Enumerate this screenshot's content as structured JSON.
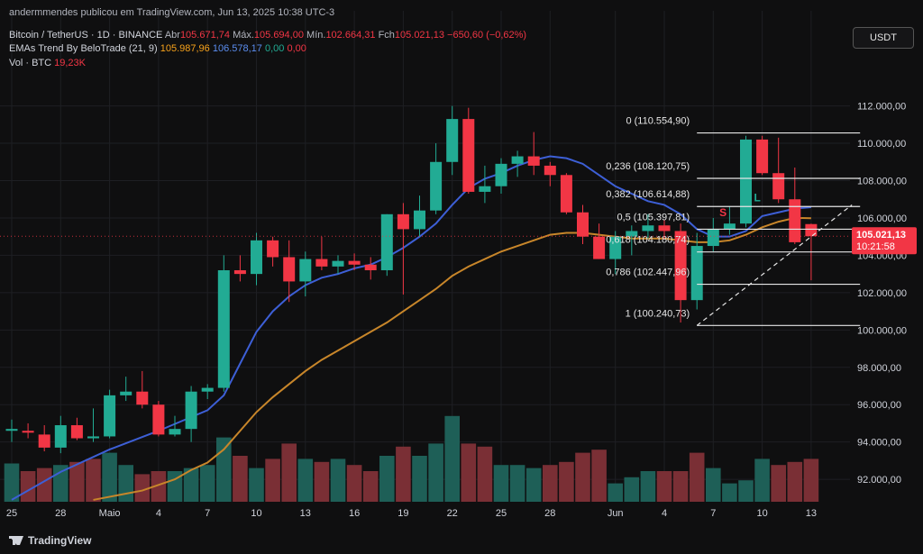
{
  "header": {
    "published": "andermmendes publicou em TradingView.com, Jun 13, 2025 10:38 UTC-3",
    "symbol": "Bitcoin / TetherUS · 1D · BINANCE",
    "ohlc": {
      "o_label": "Abr",
      "o_value": "105.671,74",
      "h_label": "Máx.",
      "h_value": "105.694,00",
      "l_label": "Mín.",
      "l_value": "102.664,31",
      "c_label": "Fch",
      "c_value": "105.021,13",
      "change": "−650,60 (−0,62%)"
    },
    "ema_legend": {
      "name": "EMAs Trend By BeloTrade (21, 9)",
      "v1": "105.987,96",
      "v2": "106.578,17",
      "v3": "0,00",
      "v4": "0,00"
    },
    "vol_legend": {
      "name": "Vol · BTC",
      "value": "19,23K"
    },
    "currency": "USDT"
  },
  "footer": {
    "brand": "TradingView"
  },
  "colors": {
    "up": "#22ab94",
    "down": "#f23645",
    "ema_fast": "#3d5fd6",
    "ema_slow": "#c8862a",
    "vol_up": "#1e5f57",
    "vol_down": "#7a2f35",
    "bg": "#0f0f10",
    "grid": "#1e1f23"
  },
  "chart_data": {
    "type": "candlestick",
    "y_range": [
      90800,
      114200
    ],
    "x_range_days": [
      -0.4,
      45.4
    ],
    "y_ticks": [
      {
        "v": 92000,
        "label": "92.000,00"
      },
      {
        "v": 94000,
        "label": "94.000,00"
      },
      {
        "v": 96000,
        "label": "96.000,00"
      },
      {
        "v": 98000,
        "label": "98.000,00"
      },
      {
        "v": 100000,
        "label": "100.000,00"
      },
      {
        "v": 102000,
        "label": "102.000,00"
      },
      {
        "v": 104000,
        "label": "104.000,00"
      },
      {
        "v": 106000,
        "label": "106.000,00"
      },
      {
        "v": 108000,
        "label": "108.000,00"
      },
      {
        "v": 110000,
        "label": "110.000,00"
      },
      {
        "v": 112000,
        "label": "112.000,00"
      }
    ],
    "x_ticks": [
      {
        "d": 0,
        "label": "25"
      },
      {
        "d": 3,
        "label": "28"
      },
      {
        "d": 6,
        "label": "Maio"
      },
      {
        "d": 9,
        "label": "4"
      },
      {
        "d": 12,
        "label": "7"
      },
      {
        "d": 15,
        "label": "10"
      },
      {
        "d": 18,
        "label": "13"
      },
      {
        "d": 21,
        "label": "16"
      },
      {
        "d": 24,
        "label": "19"
      },
      {
        "d": 27,
        "label": "22"
      },
      {
        "d": 30,
        "label": "25"
      },
      {
        "d": 33,
        "label": "28"
      },
      {
        "d": 37,
        "label": "Jun"
      },
      {
        "d": 40,
        "label": "4"
      },
      {
        "d": 43,
        "label": "7"
      },
      {
        "d": 46,
        "label": "10"
      },
      {
        "d": 49,
        "label": "13"
      }
    ],
    "candles": [
      [
        94600,
        95200,
        94000,
        94700
      ],
      [
        94600,
        95000,
        94200,
        94500
      ],
      [
        94400,
        94900,
        93500,
        93700
      ],
      [
        93700,
        95400,
        93400,
        94900
      ],
      [
        94900,
        95300,
        94100,
        94200
      ],
      [
        94200,
        95800,
        94000,
        94300
      ],
      [
        94300,
        96800,
        94200,
        96500
      ],
      [
        96500,
        97500,
        96200,
        96700
      ],
      [
        96700,
        97800,
        95800,
        96000
      ],
      [
        96000,
        96200,
        94300,
        94400
      ],
      [
        94400,
        95400,
        94300,
        94700
      ],
      [
        94700,
        97000,
        94000,
        96700
      ],
      [
        96700,
        97100,
        96300,
        96900
      ],
      [
        96900,
        104000,
        96700,
        103200
      ],
      [
        103200,
        104000,
        102600,
        103000
      ],
      [
        103000,
        105200,
        102400,
        104800
      ],
      [
        104800,
        105000,
        103400,
        103900
      ],
      [
        103900,
        104800,
        101500,
        102600
      ],
      [
        102600,
        104200,
        101800,
        103800
      ],
      [
        103800,
        105000,
        103200,
        103400
      ],
      [
        103400,
        104000,
        103000,
        103700
      ],
      [
        103700,
        104100,
        103200,
        103500
      ],
      [
        103500,
        103900,
        102700,
        103200
      ],
      [
        103200,
        106200,
        102900,
        106200
      ],
      [
        106200,
        106800,
        101900,
        105400
      ],
      [
        105400,
        107200,
        105000,
        106400
      ],
      [
        106400,
        110000,
        106200,
        109000
      ],
      [
        109000,
        112000,
        108300,
        111300
      ],
      [
        111300,
        111900,
        107300,
        107400
      ],
      [
        107400,
        108800,
        106800,
        107700
      ],
      [
        107700,
        109200,
        107300,
        108900
      ],
      [
        108900,
        109600,
        108200,
        109300
      ],
      [
        109300,
        110600,
        108300,
        108800
      ],
      [
        108800,
        109000,
        107700,
        108300
      ],
      [
        108300,
        108400,
        106200,
        106300
      ],
      [
        106300,
        106700,
        104600,
        105000
      ],
      [
        105000,
        105700,
        103800,
        103800
      ],
      [
        103800,
        105300,
        103000,
        105000
      ],
      [
        105000,
        105600,
        104000,
        105300
      ],
      [
        105300,
        106200,
        104900,
        105600
      ],
      [
        105600,
        105900,
        104900,
        105300
      ],
      [
        105300,
        105700,
        100400,
        101600
      ],
      [
        101600,
        105200,
        101100,
        104500
      ],
      [
        104500,
        106000,
        104200,
        105400
      ],
      [
        105400,
        106600,
        105100,
        105700
      ],
      [
        105700,
        110400,
        105500,
        110200
      ],
      [
        110200,
        110400,
        108300,
        108400
      ],
      [
        108400,
        110300,
        106800,
        107000
      ],
      [
        107000,
        108700,
        104600,
        104700
      ],
      [
        105672,
        105694,
        102664,
        105021
      ]
    ],
    "volumes": [
      [
        0,
        0.25,
        "up"
      ],
      [
        1,
        0.2,
        "dn"
      ],
      [
        2,
        0.22,
        "dn"
      ],
      [
        3,
        0.24,
        "up"
      ],
      [
        4,
        0.26,
        "dn"
      ],
      [
        5,
        0.28,
        "dn"
      ],
      [
        6,
        0.32,
        "up"
      ],
      [
        7,
        0.24,
        "up"
      ],
      [
        8,
        0.18,
        "dn"
      ],
      [
        9,
        0.2,
        "dn"
      ],
      [
        10,
        0.2,
        "up"
      ],
      [
        11,
        0.22,
        "up"
      ],
      [
        12,
        0.24,
        "up"
      ],
      [
        13,
        0.42,
        "up"
      ],
      [
        14,
        0.3,
        "dn"
      ],
      [
        15,
        0.22,
        "up"
      ],
      [
        16,
        0.28,
        "dn"
      ],
      [
        17,
        0.38,
        "dn"
      ],
      [
        18,
        0.28,
        "up"
      ],
      [
        19,
        0.26,
        "dn"
      ],
      [
        20,
        0.28,
        "up"
      ],
      [
        21,
        0.24,
        "dn"
      ],
      [
        22,
        0.2,
        "dn"
      ],
      [
        23,
        0.3,
        "up"
      ],
      [
        24,
        0.36,
        "dn"
      ],
      [
        25,
        0.3,
        "up"
      ],
      [
        26,
        0.38,
        "up"
      ],
      [
        27,
        0.56,
        "up"
      ],
      [
        28,
        0.38,
        "dn"
      ],
      [
        29,
        0.36,
        "dn"
      ],
      [
        30,
        0.24,
        "up"
      ],
      [
        31,
        0.24,
        "up"
      ],
      [
        32,
        0.22,
        "up"
      ],
      [
        33,
        0.24,
        "dn"
      ],
      [
        34,
        0.26,
        "dn"
      ],
      [
        35,
        0.32,
        "dn"
      ],
      [
        36,
        0.34,
        "dn"
      ],
      [
        37,
        0.12,
        "up"
      ],
      [
        38,
        0.16,
        "up"
      ],
      [
        39,
        0.2,
        "up"
      ],
      [
        40,
        0.2,
        "dn"
      ],
      [
        41,
        0.2,
        "dn"
      ],
      [
        42,
        0.32,
        "dn"
      ],
      [
        43,
        0.22,
        "up"
      ],
      [
        44,
        0.12,
        "up"
      ],
      [
        45,
        0.14,
        "up"
      ],
      [
        46,
        0.28,
        "up"
      ],
      [
        47,
        0.24,
        "dn"
      ],
      [
        48,
        0.26,
        "dn"
      ],
      [
        49,
        0.28,
        "dn"
      ]
    ],
    "ema_fast": [
      [
        0,
        90900
      ],
      [
        3,
        92400
      ],
      [
        6,
        93600
      ],
      [
        9,
        94600
      ],
      [
        12,
        95700
      ],
      [
        13,
        96500
      ],
      [
        14,
        98200
      ],
      [
        15,
        99900
      ],
      [
        16,
        101000
      ],
      [
        17,
        101800
      ],
      [
        18,
        102400
      ],
      [
        19,
        102800
      ],
      [
        20,
        103000
      ],
      [
        21,
        103300
      ],
      [
        22,
        103500
      ],
      [
        23,
        103900
      ],
      [
        24,
        104400
      ],
      [
        25,
        105000
      ],
      [
        26,
        105700
      ],
      [
        27,
        106700
      ],
      [
        28,
        107600
      ],
      [
        29,
        108100
      ],
      [
        30,
        108400
      ],
      [
        31,
        108800
      ],
      [
        32,
        109100
      ],
      [
        33,
        109300
      ],
      [
        34,
        109200
      ],
      [
        35,
        108900
      ],
      [
        36,
        108300
      ],
      [
        37,
        107700
      ],
      [
        38,
        107300
      ],
      [
        39,
        106900
      ],
      [
        40,
        106700
      ],
      [
        41,
        106200
      ],
      [
        42,
        105400
      ],
      [
        43,
        105000
      ],
      [
        44,
        105000
      ],
      [
        45,
        105300
      ],
      [
        46,
        106100
      ],
      [
        47,
        106300
      ],
      [
        48,
        106500
      ],
      [
        49,
        106578
      ]
    ],
    "ema_slow": [
      [
        5,
        90900
      ],
      [
        8,
        91400
      ],
      [
        10,
        92000
      ],
      [
        11,
        92500
      ],
      [
        12,
        92900
      ],
      [
        13,
        93600
      ],
      [
        14,
        94600
      ],
      [
        15,
        95600
      ],
      [
        16,
        96400
      ],
      [
        17,
        97100
      ],
      [
        18,
        97800
      ],
      [
        19,
        98400
      ],
      [
        20,
        98900
      ],
      [
        21,
        99400
      ],
      [
        22,
        99900
      ],
      [
        23,
        100400
      ],
      [
        24,
        101000
      ],
      [
        25,
        101600
      ],
      [
        26,
        102200
      ],
      [
        27,
        102900
      ],
      [
        28,
        103400
      ],
      [
        29,
        103800
      ],
      [
        30,
        104200
      ],
      [
        31,
        104500
      ],
      [
        32,
        104800
      ],
      [
        33,
        105100
      ],
      [
        34,
        105200
      ],
      [
        35,
        105200
      ],
      [
        36,
        105100
      ],
      [
        37,
        105000
      ],
      [
        38,
        104900
      ],
      [
        39,
        104900
      ],
      [
        40,
        104900
      ],
      [
        41,
        104800
      ],
      [
        42,
        104700
      ],
      [
        43,
        104700
      ],
      [
        44,
        104800
      ],
      [
        45,
        105100
      ],
      [
        46,
        105500
      ],
      [
        47,
        105800
      ],
      [
        48,
        106000
      ],
      [
        49,
        105988
      ]
    ],
    "fib_levels": [
      {
        "v": 110554.9,
        "label": "0 (110.554,90)"
      },
      {
        "v": 108120.75,
        "label": "0,236 (108.120,75)"
      },
      {
        "v": 106614.88,
        "label": "0,382 (106.614,88)"
      },
      {
        "v": 105397.81,
        "label": "0,5 (105.397,81)"
      },
      {
        "v": 104180.74,
        "label": "0,618 (104.180,74)"
      },
      {
        "v": 102447.96,
        "label": "0,786 (102.447,96)"
      },
      {
        "v": 100240.73,
        "label": "1 (100.240,73)"
      }
    ],
    "fib_x_range": [
      42,
      52
    ],
    "fib_trendline": [
      [
        42,
        100240.73
      ],
      [
        51.5,
        106700
      ]
    ],
    "markers": [
      {
        "d": 43.6,
        "v": 106100,
        "text": "S",
        "color": "#f23645"
      },
      {
        "d": 45.7,
        "v": 106900,
        "text": "L",
        "color": "#22ab94"
      }
    ],
    "last_price": {
      "v": 105021.13,
      "label": "105.021,13",
      "countdown": "10:21:58"
    }
  }
}
